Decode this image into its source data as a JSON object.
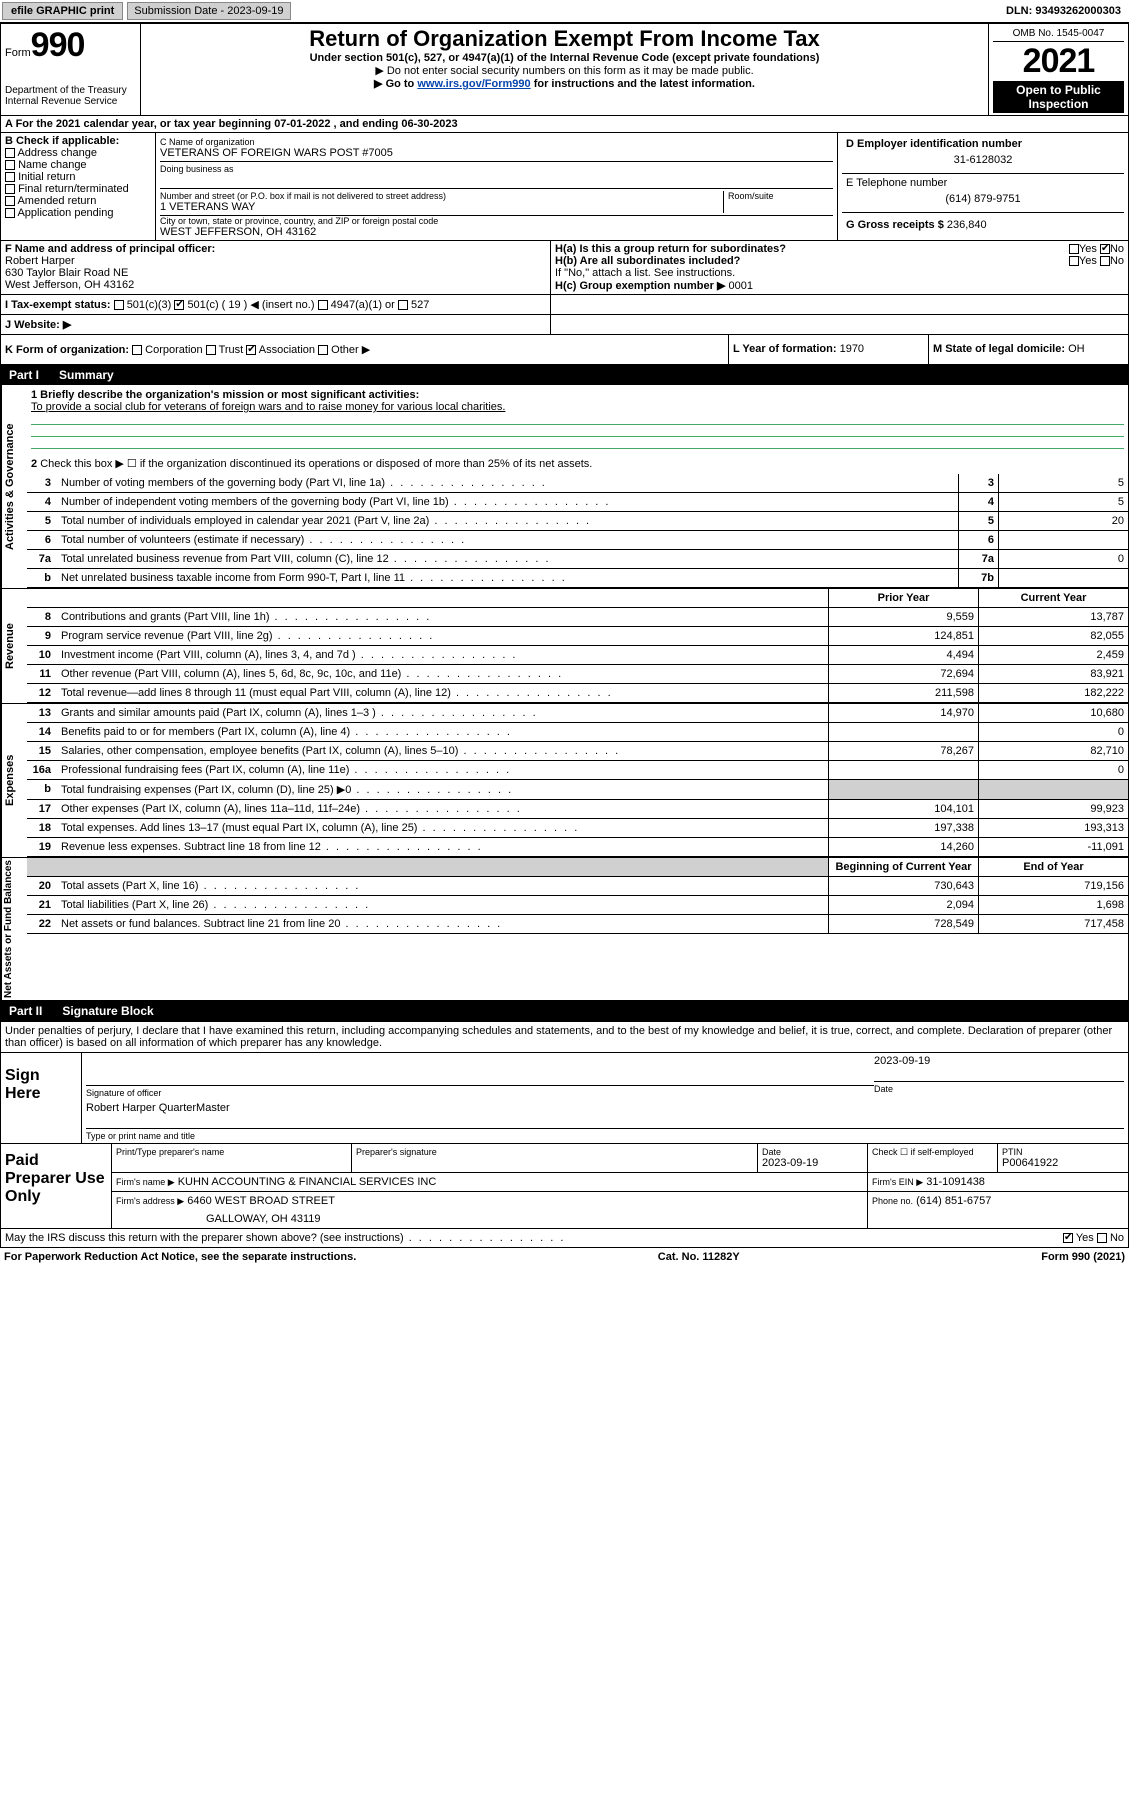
{
  "top_bar": {
    "efile_label": "efile GRAPHIC print",
    "submission_label": "Submission Date - 2023-09-19",
    "dln": "DLN: 93493262000303"
  },
  "header": {
    "form_label": "Form",
    "form_number": "990",
    "dept": "Department of the Treasury\nInternal Revenue Service",
    "title": "Return of Organization Exempt From Income Tax",
    "sub1": "Under section 501(c), 527, or 4947(a)(1) of the Internal Revenue Code (except private foundations)",
    "sub2": "▶ Do not enter social security numbers on this form as it may be made public.",
    "sub3_prefix": "▶ Go to ",
    "sub3_link": "www.irs.gov/Form990",
    "sub3_suffix": " for instructions and the latest information.",
    "omb": "OMB No. 1545-0047",
    "year": "2021",
    "open": "Open to Public Inspection"
  },
  "line_a": "A For the 2021 calendar year, or tax year beginning 07-01-2022   , and ending 06-30-2023",
  "block_b": {
    "title": "B Check if applicable:",
    "items": [
      "Address change",
      "Name change",
      "Initial return",
      "Final return/terminated",
      "Amended return",
      "Application pending"
    ]
  },
  "block_c": {
    "name_label": "C Name of organization",
    "name": "VETERANS OF FOREIGN WARS POST #7005",
    "dba_label": "Doing business as",
    "addr_label": "Number and street (or P.O. box if mail is not delivered to street address)",
    "room_label": "Room/suite",
    "addr": "1 VETERANS WAY",
    "city_label": "City or town, state or province, country, and ZIP or foreign postal code",
    "city": "WEST JEFFERSON, OH  43162"
  },
  "block_d": {
    "ein_label": "D Employer identification number",
    "ein": "31-6128032",
    "phone_label": "E Telephone number",
    "phone": "(614) 879-9751",
    "gross_label": "G Gross receipts $",
    "gross": "236,840"
  },
  "block_f": {
    "label": "F  Name and address of principal officer:",
    "name": "Robert Harper",
    "addr1": "630 Taylor Blair Road NE",
    "addr2": "West Jefferson, OH  43162"
  },
  "block_h": {
    "ha_label": "H(a)  Is this a group return for subordinates?",
    "ha_yes": "Yes",
    "ha_no": "No",
    "hb_label": "H(b)  Are all subordinates included?",
    "hb_yes": "Yes",
    "hb_no": "No",
    "hb_note": "If \"No,\" attach a list. See instructions.",
    "hc_label": "H(c)  Group exemption number ▶",
    "hc_val": "0001"
  },
  "line_i": {
    "label": "I    Tax-exempt status:",
    "opt1": "501(c)(3)",
    "opt2": "501(c) ( 19 ) ◀ (insert no.)",
    "opt3": "4947(a)(1) or",
    "opt4": "527"
  },
  "line_j": "J    Website: ▶",
  "line_k": {
    "label": "K Form of organization:",
    "opts": [
      "Corporation",
      "Trust",
      "Association",
      "Other ▶"
    ],
    "checked_idx": 2
  },
  "line_l": {
    "label": "L Year of formation:",
    "val": "1970"
  },
  "line_m": {
    "label": "M State of legal domicile:",
    "val": "OH"
  },
  "part1": {
    "header_num": "Part I",
    "header_title": "Summary",
    "sidebars": [
      "Activities & Governance",
      "Revenue",
      "Expenses",
      "Net Assets or Fund Balances"
    ],
    "line1_label": "1  Briefly describe the organization's mission or most significant activities:",
    "line1_text": "To provide a social club for veterans of foreign wars and to raise money for various local charities.",
    "line2": "Check this box ▶ ☐  if the organization discontinued its operations or disposed of more than 25% of its net assets.",
    "col_prior": "Prior Year",
    "col_current": "Current Year",
    "col_begin": "Beginning of Current Year",
    "col_end": "End of Year",
    "rows_gov": [
      {
        "n": "3",
        "t": "Number of voting members of the governing body (Part VI, line 1a)",
        "box": "3",
        "v": "5"
      },
      {
        "n": "4",
        "t": "Number of independent voting members of the governing body (Part VI, line 1b)",
        "box": "4",
        "v": "5"
      },
      {
        "n": "5",
        "t": "Total number of individuals employed in calendar year 2021 (Part V, line 2a)",
        "box": "5",
        "v": "20"
      },
      {
        "n": "6",
        "t": "Total number of volunteers (estimate if necessary)",
        "box": "6",
        "v": ""
      },
      {
        "n": "7a",
        "t": "Total unrelated business revenue from Part VIII, column (C), line 12",
        "box": "7a",
        "v": "0"
      },
      {
        "n": "b",
        "t": "Net unrelated business taxable income from Form 990-T, Part I, line 11",
        "box": "7b",
        "v": ""
      }
    ],
    "rows_rev": [
      {
        "n": "8",
        "t": "Contributions and grants (Part VIII, line 1h)",
        "p": "9,559",
        "c": "13,787"
      },
      {
        "n": "9",
        "t": "Program service revenue (Part VIII, line 2g)",
        "p": "124,851",
        "c": "82,055"
      },
      {
        "n": "10",
        "t": "Investment income (Part VIII, column (A), lines 3, 4, and 7d )",
        "p": "4,494",
        "c": "2,459"
      },
      {
        "n": "11",
        "t": "Other revenue (Part VIII, column (A), lines 5, 6d, 8c, 9c, 10c, and 11e)",
        "p": "72,694",
        "c": "83,921"
      },
      {
        "n": "12",
        "t": "Total revenue—add lines 8 through 11 (must equal Part VIII, column (A), line 12)",
        "p": "211,598",
        "c": "182,222"
      }
    ],
    "rows_exp": [
      {
        "n": "13",
        "t": "Grants and similar amounts paid (Part IX, column (A), lines 1–3 )",
        "p": "14,970",
        "c": "10,680"
      },
      {
        "n": "14",
        "t": "Benefits paid to or for members (Part IX, column (A), line 4)",
        "p": "",
        "c": "0"
      },
      {
        "n": "15",
        "t": "Salaries, other compensation, employee benefits (Part IX, column (A), lines 5–10)",
        "p": "78,267",
        "c": "82,710"
      },
      {
        "n": "16a",
        "t": "Professional fundraising fees (Part IX, column (A), line 11e)",
        "p": "",
        "c": "0"
      },
      {
        "n": "b",
        "t": "Total fundraising expenses (Part IX, column (D), line 25) ▶0",
        "p": "SHADE",
        "c": "SHADE"
      },
      {
        "n": "17",
        "t": "Other expenses (Part IX, column (A), lines 11a–11d, 11f–24e)",
        "p": "104,101",
        "c": "99,923"
      },
      {
        "n": "18",
        "t": "Total expenses. Add lines 13–17 (must equal Part IX, column (A), line 25)",
        "p": "197,338",
        "c": "193,313"
      },
      {
        "n": "19",
        "t": "Revenue less expenses. Subtract line 18 from line 12",
        "p": "14,260",
        "c": "-11,091"
      }
    ],
    "rows_net": [
      {
        "n": "20",
        "t": "Total assets (Part X, line 16)",
        "p": "730,643",
        "c": "719,156"
      },
      {
        "n": "21",
        "t": "Total liabilities (Part X, line 26)",
        "p": "2,094",
        "c": "1,698"
      },
      {
        "n": "22",
        "t": "Net assets or fund balances. Subtract line 21 from line 20",
        "p": "728,549",
        "c": "717,458"
      }
    ]
  },
  "part2": {
    "header_num": "Part II",
    "header_title": "Signature Block",
    "intro": "Under penalties of perjury, I declare that I have examined this return, including accompanying schedules and statements, and to the best of my knowledge and belief, it is true, correct, and complete. Declaration of preparer (other than officer) is based on all information of which preparer has any knowledge.",
    "sign_here": "Sign Here",
    "sig_officer_label": "Signature of officer",
    "sig_date": "2023-09-19",
    "sig_date_label": "Date",
    "sig_name": "Robert Harper  QuarterMaster",
    "sig_name_label": "Type or print name and title",
    "paid_label": "Paid Preparer Use Only",
    "prep_name_label": "Print/Type preparer's name",
    "prep_sig_label": "Preparer's signature",
    "prep_date_label": "Date",
    "prep_date": "2023-09-19",
    "prep_check_label": "Check ☐ if self-employed",
    "ptin_label": "PTIN",
    "ptin": "P00641922",
    "firm_name_label": "Firm's name    ▶",
    "firm_name": "KUHN ACCOUNTING & FINANCIAL SERVICES INC",
    "firm_ein_label": "Firm's EIN ▶",
    "firm_ein": "31-1091438",
    "firm_addr_label": "Firm's address ▶",
    "firm_addr1": "6460 WEST BROAD STREET",
    "firm_addr2": "GALLOWAY, OH  43119",
    "firm_phone_label": "Phone no.",
    "firm_phone": "(614) 851-6757",
    "discuss": "May the IRS discuss this return with the preparer shown above? (see instructions)",
    "discuss_yes": "Yes",
    "discuss_no": "No"
  },
  "footer": {
    "paperwork": "For Paperwork Reduction Act Notice, see the separate instructions.",
    "catno": "Cat. No. 11282Y",
    "formno": "Form 990 (2021)"
  },
  "colors": {
    "link": "#0645ad",
    "black": "#000000",
    "shade": "#d0d0d0",
    "uline": "#4a6"
  }
}
